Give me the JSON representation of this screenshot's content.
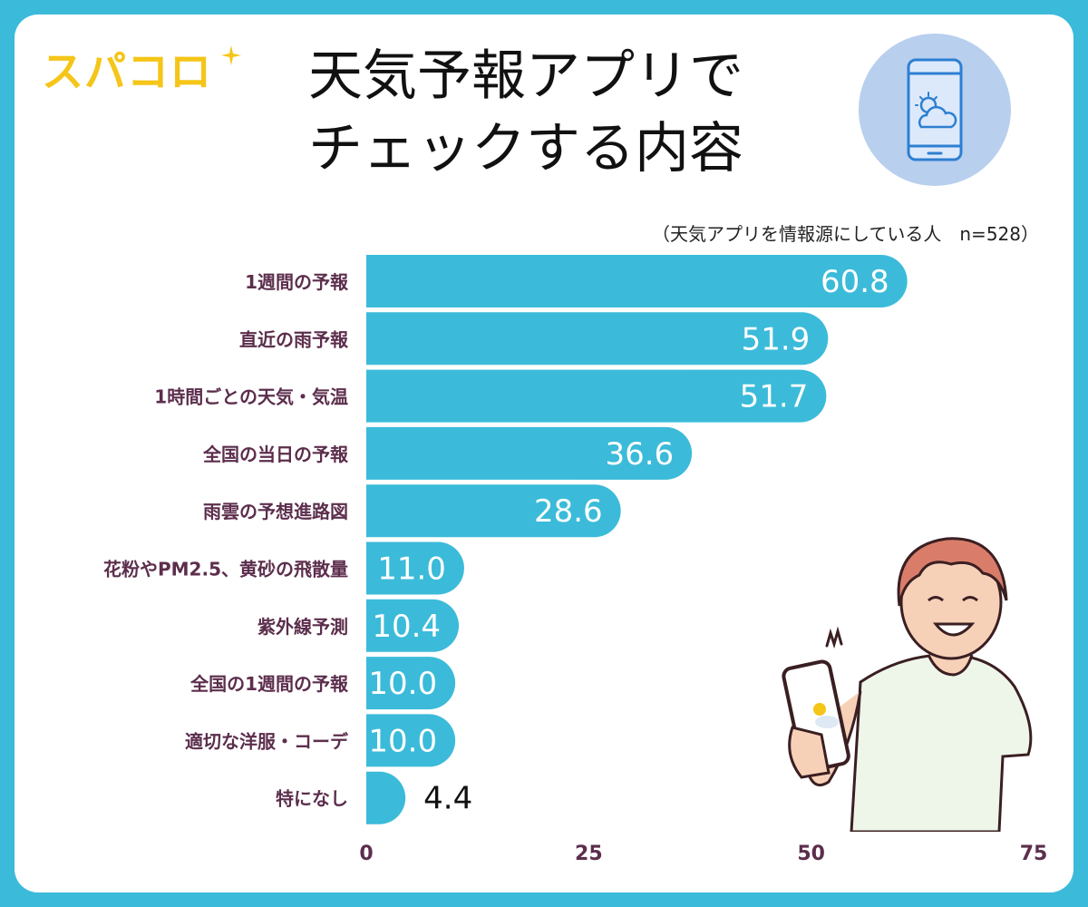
{
  "brand": {
    "logo_text": "スパコロ"
  },
  "header": {
    "title_line1": "天気予報アプリで",
    "title_line2": "チェックする内容"
  },
  "note": "（天気アプリを情報源にしている人　n=528）",
  "icons": {
    "logo_sparkle": "sparkle-icon",
    "phone": "phone-weather-icon",
    "person": "person-holding-phone-illustration"
  },
  "colors": {
    "frame": "#3bbbd9",
    "bar": "#3bbbd9",
    "label": "#5c2e4c",
    "axis": "#5c2e4c",
    "logo": "#f5c518",
    "circle": "#b8cfee"
  },
  "chart_data": {
    "type": "bar",
    "orientation": "horizontal",
    "title": "天気予報アプリでチェックする内容",
    "categories": [
      "1週間の予報",
      "直近の雨予報",
      "1時間ごとの天気・気温",
      "全国の当日の予報",
      "雨雲の予想進路図",
      "花粉やPM2.5、黄砂の飛散量",
      "紫外線予測",
      "全国の1週間の予報",
      "適切な洋服・コーデ",
      "特になし"
    ],
    "values": [
      60.8,
      51.9,
      51.7,
      36.6,
      28.6,
      11.0,
      10.4,
      10.0,
      10.0,
      4.4
    ],
    "value_labels": [
      "60.8",
      "51.9",
      "51.7",
      "36.6",
      "28.6",
      "11.0",
      "10.4",
      "10.0",
      "10.0",
      "4.4"
    ],
    "xticks": [
      "0",
      "25",
      "50",
      "75"
    ],
    "xlim": [
      0,
      75
    ],
    "grid": false,
    "legend": "none"
  }
}
